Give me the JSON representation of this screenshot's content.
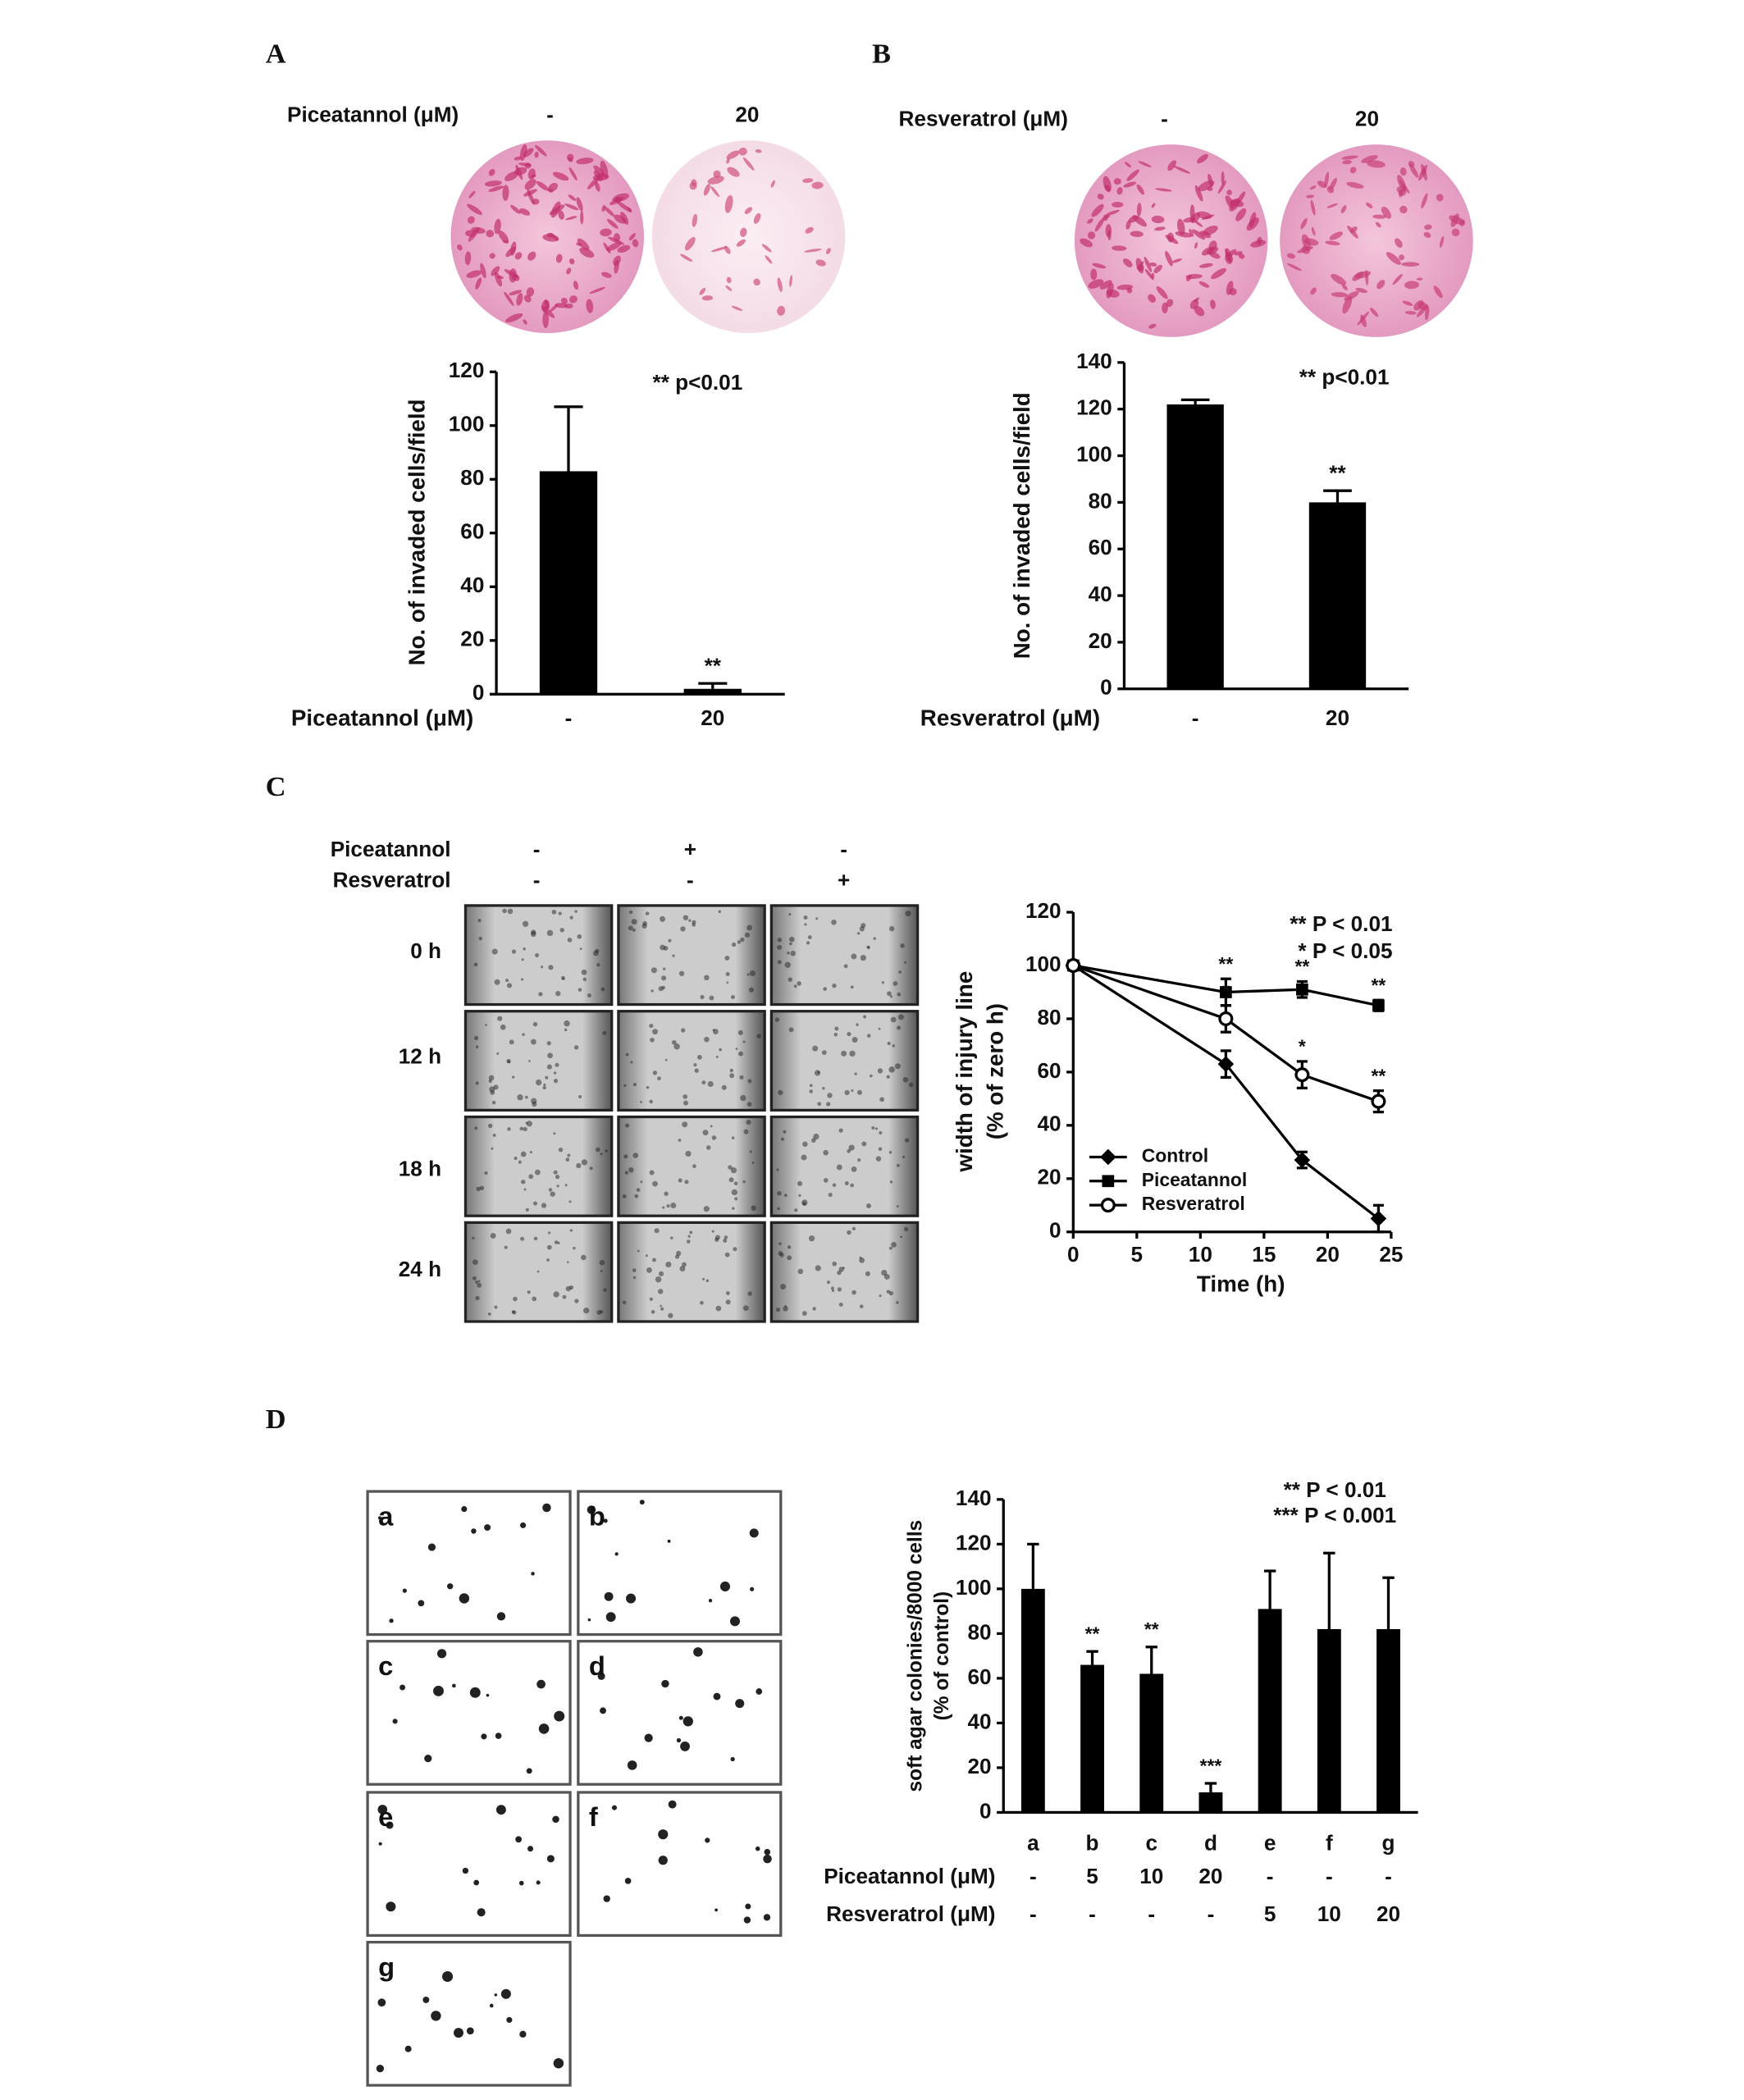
{
  "panels": [
    {
      "label": "A",
      "treatment": "Piceatannol (μM)",
      "doses": [
        "-",
        "20"
      ]
    },
    {
      "label": "B",
      "treatment": "Resveratrol (μM)",
      "doses": [
        "-",
        "20"
      ]
    },
    {
      "label": "C",
      "rows": [
        {
          "name": "Piceatannol",
          "signs": [
            "-",
            "+",
            "-"
          ]
        },
        {
          "name": "Resveratrol",
          "signs": [
            "-",
            "-",
            "+"
          ]
        }
      ],
      "times": [
        "0 h",
        "12 h",
        "18 h",
        "24 h"
      ]
    },
    {
      "label": "D",
      "images": [
        "a",
        "b",
        "c",
        "d",
        "e",
        "f",
        "g"
      ]
    }
  ],
  "chart_data": [
    {
      "type": "bar",
      "ylabel": "No. of invaded cells/field",
      "xlabel": "Piceatannol (μM)",
      "categories": [
        "-",
        "20"
      ],
      "values": [
        83,
        2
      ],
      "errors": [
        24,
        2
      ],
      "significance": [
        null,
        "**"
      ],
      "color": "#000000",
      "ylim": [
        0,
        120
      ],
      "yticks": [
        0,
        20,
        40,
        60,
        80,
        100,
        120
      ],
      "annotations": [
        "** p<0.01"
      ]
    },
    {
      "type": "bar",
      "ylabel": "No. of invaded cells/field",
      "xlabel": "Resveratrol (μM)",
      "categories": [
        "-",
        "20"
      ],
      "values": [
        122,
        80
      ],
      "errors": [
        2,
        5
      ],
      "significance": [
        null,
        "**"
      ],
      "color": "#000000",
      "ylim": [
        0,
        140
      ],
      "yticks": [
        0,
        20,
        40,
        60,
        80,
        100,
        120,
        140
      ],
      "annotations": [
        "** p<0.01"
      ]
    },
    {
      "type": "line",
      "ylabel": [
        "width of injury line",
        "(% of zero h)"
      ],
      "xlabel": "Time (h)",
      "x": [
        0,
        12,
        18,
        24
      ],
      "series": [
        {
          "name": "Control",
          "color": "#000000",
          "marker": "diamond",
          "values": [
            100,
            63,
            27,
            5
          ],
          "errors": [
            0,
            5,
            3,
            5
          ],
          "significance": [
            null,
            null,
            null,
            null
          ]
        },
        {
          "name": "Piceatannol",
          "color": "#000000",
          "marker": "square",
          "values": [
            100,
            90,
            91,
            85
          ],
          "errors": [
            0,
            5,
            3,
            2
          ],
          "significance": [
            null,
            "**",
            "**",
            "**"
          ]
        },
        {
          "name": "Resveratrol",
          "color": "#000000",
          "marker": "open-circle",
          "values": [
            100,
            80,
            59,
            49
          ],
          "errors": [
            0,
            5,
            5,
            4
          ],
          "significance": [
            null,
            "*",
            "*",
            "**"
          ]
        }
      ],
      "xlim": [
        0,
        25
      ],
      "xticks": [
        0,
        5,
        10,
        15,
        20,
        25
      ],
      "ylim": [
        0,
        120
      ],
      "yticks": [
        0,
        20,
        40,
        60,
        80,
        100,
        120
      ],
      "legend": "lower-left",
      "annotations": [
        "** P < 0.01",
        "* P < 0.05"
      ]
    },
    {
      "type": "bar",
      "ylabel": [
        "soft agar colonies/8000 cells",
        "(% of control)"
      ],
      "categories": [
        "a",
        "b",
        "c",
        "d",
        "e",
        "f",
        "g"
      ],
      "values": [
        100,
        66,
        62,
        9,
        91,
        82,
        82
      ],
      "errors": [
        20,
        6,
        12,
        4,
        17,
        34,
        23
      ],
      "significance": [
        null,
        "**",
        "**",
        "***",
        null,
        null,
        null
      ],
      "color": "#000000",
      "ylim": [
        0,
        140
      ],
      "yticks": [
        0,
        20,
        40,
        60,
        80,
        100,
        120,
        140
      ],
      "annotations": [
        "** P < 0.01",
        "*** P < 0.001"
      ],
      "table": [
        {
          "name": "Piceatannol (μM)",
          "cells": [
            "-",
            "5",
            "10",
            "20",
            "-",
            "-",
            "-"
          ]
        },
        {
          "name": "Resveratrol (μM)",
          "cells": [
            "-",
            "-",
            "-",
            "-",
            "5",
            "10",
            "20"
          ]
        }
      ]
    }
  ]
}
